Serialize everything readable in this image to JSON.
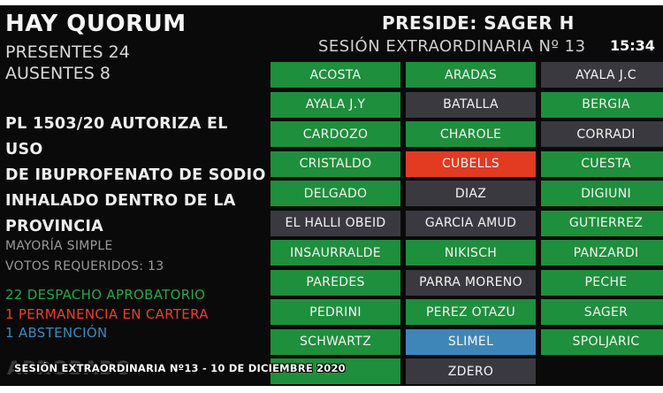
{
  "header": {
    "quorum": "HAY QUORUM",
    "presentes": "PRESENTES 24",
    "ausentes": "AUSENTES 8",
    "preside": "PRESIDE: SAGER H",
    "sesion": "SESIÓN EXTRAORDINARIA Nº 13",
    "clock": "15:34"
  },
  "bill": {
    "lines": [
      "PL 1503/20 AUTORIZA EL USO",
      "DE IBUPROFENATO DE SODIO",
      "INHALADO DENTRO DE LA",
      "PROVINCIA"
    ]
  },
  "vote_rules": {
    "mayoria": "MAYORÍA SIMPLE",
    "requeridos": "VOTOS REQUERIDOS: 13"
  },
  "results": [
    {
      "text": "22 DESPACHO APROBATORIO",
      "color": "#27a844"
    },
    {
      "text": "1 PERMANENCIA EN CARTERA",
      "color": "#e8412c"
    },
    {
      "text": "1 ABSTENCIÓN",
      "color": "#3a8bbf"
    }
  ],
  "status_watermark": "APROBADO",
  "footer": "SESIÓN EXTRAORDINARIA Nº13 - 10 DE DICIEMBRE 2020",
  "colors": {
    "green": "#1e8f3c",
    "dark": "#3b3940",
    "red": "#e33a22",
    "blue": "#3f86b8"
  },
  "legislators": [
    {
      "name": "ACOSTA",
      "state": "green"
    },
    {
      "name": "ARADAS",
      "state": "green"
    },
    {
      "name": "AYALA J.C",
      "state": "dark"
    },
    {
      "name": "AYALA J.Y",
      "state": "green"
    },
    {
      "name": "BATALLA",
      "state": "dark"
    },
    {
      "name": "BERGIA",
      "state": "green"
    },
    {
      "name": "CARDOZO",
      "state": "green"
    },
    {
      "name": "CHAROLE",
      "state": "green"
    },
    {
      "name": "CORRADI",
      "state": "dark"
    },
    {
      "name": "CRISTALDO",
      "state": "green"
    },
    {
      "name": "CUBELLS",
      "state": "red"
    },
    {
      "name": "CUESTA",
      "state": "green"
    },
    {
      "name": "DELGADO",
      "state": "green"
    },
    {
      "name": "DIAZ",
      "state": "dark"
    },
    {
      "name": "DIGIUNI",
      "state": "green"
    },
    {
      "name": "EL HALLI OBEID",
      "state": "dark"
    },
    {
      "name": "GARCIA AMUD",
      "state": "dark"
    },
    {
      "name": "GUTIERREZ",
      "state": "green"
    },
    {
      "name": "INSAURRALDE",
      "state": "green"
    },
    {
      "name": "NIKISCH",
      "state": "green"
    },
    {
      "name": "PANZARDI",
      "state": "green"
    },
    {
      "name": "PAREDES",
      "state": "green"
    },
    {
      "name": "PARRA MORENO",
      "state": "dark"
    },
    {
      "name": "PECHE",
      "state": "green"
    },
    {
      "name": "PEDRINI",
      "state": "green"
    },
    {
      "name": "PEREZ OTAZU",
      "state": "green"
    },
    {
      "name": "SAGER",
      "state": "green"
    },
    {
      "name": "SCHWARTZ",
      "state": "green"
    },
    {
      "name": "SLIMEL",
      "state": "blue"
    },
    {
      "name": "SPOLJARIC",
      "state": "green"
    },
    {
      "name": "",
      "state": "green"
    },
    {
      "name": "ZDERO",
      "state": "dark"
    }
  ]
}
